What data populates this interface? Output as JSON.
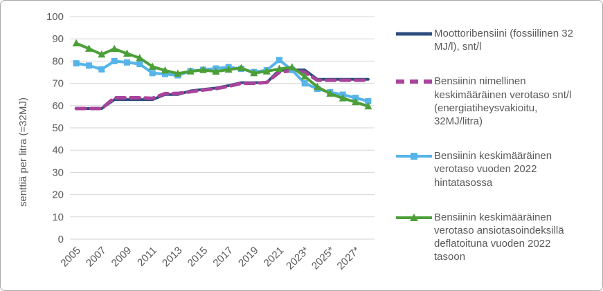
{
  "y_axis_title": "senttiä per litra (=32MJ)",
  "chart_data": {
    "type": "line",
    "title": "",
    "xlabel": "",
    "ylabel": "senttiä per litra (=32MJ)",
    "ylim": [
      0,
      100
    ],
    "y_ticks": [
      0,
      10,
      20,
      30,
      40,
      50,
      60,
      70,
      80,
      90,
      100
    ],
    "grid": true,
    "legend_position": "right",
    "x": [
      2005,
      2006,
      2007,
      2008,
      2009,
      2010,
      2011,
      2012,
      2013,
      2014,
      2015,
      2016,
      2017,
      2018,
      2019,
      2020,
      2021,
      2022,
      2023,
      2024,
      2025,
      2026,
      2027,
      2028
    ],
    "x_tick_labels": [
      "2005",
      "2007",
      "2009",
      "2011",
      "2013",
      "2015",
      "2017",
      "2019",
      "2021",
      "2023*",
      "2025*",
      "2027*"
    ],
    "series": [
      {
        "name": "Moottoribensiini (fossiilinen 32 MJ/l), snt/l",
        "color": "#2e4d7e",
        "style": "solid",
        "marker": "none",
        "values": [
          58.7,
          58.7,
          58.7,
          62.7,
          62.7,
          62.7,
          62.7,
          65.0,
          65.0,
          66.6,
          67.3,
          67.9,
          69.0,
          70.3,
          70.3,
          70.3,
          76.0,
          76.0,
          76.0,
          71.8,
          71.8,
          71.8,
          71.8,
          71.8
        ]
      },
      {
        "name": "Bensiinin nimellinen keskimääräinen verotaso snt/l (energiatiheysvakioitu, 32MJ/litra)",
        "color": "#a8449b",
        "style": "dashed",
        "marker": "none",
        "values": [
          58.7,
          58.7,
          58.7,
          63.5,
          63.5,
          63.5,
          63.3,
          65.4,
          65.5,
          66.2,
          67.0,
          67.6,
          68.7,
          70.0,
          70.0,
          70.4,
          75.0,
          75.7,
          75.0,
          71.4,
          71.4,
          71.4,
          71.4,
          71.4
        ]
      },
      {
        "name": "Bensiinin keskimääräinen verotaso vuoden 2022 hintatasossa",
        "color": "#56b4e9",
        "style": "solid",
        "marker": "square",
        "values": [
          79.0,
          78.0,
          76.3,
          80.0,
          79.4,
          78.7,
          74.6,
          74.2,
          73.6,
          75.5,
          76.1,
          76.7,
          77.3,
          76.5,
          75.1,
          75.9,
          80.5,
          76.0,
          70.0,
          67.5,
          66.0,
          64.9,
          63.5,
          62.0
        ]
      },
      {
        "name": "Bensiinin keskimääräinen verotaso ansiotasoindeksillä deflatoituna vuoden 2022 tasoon",
        "color": "#4c9f38",
        "style": "solid",
        "marker": "triangle",
        "values": [
          88.0,
          85.6,
          83.0,
          85.5,
          83.4,
          81.4,
          77.5,
          75.8,
          74.4,
          75.4,
          76.0,
          75.3,
          76.2,
          76.9,
          74.6,
          75.4,
          76.5,
          77.2,
          73.1,
          68.4,
          65.4,
          63.3,
          61.6,
          59.7
        ]
      }
    ],
    "colors": {
      "gridline": "#d6d6d6",
      "axis_text": "#595959",
      "legend_text": "#595959"
    }
  }
}
